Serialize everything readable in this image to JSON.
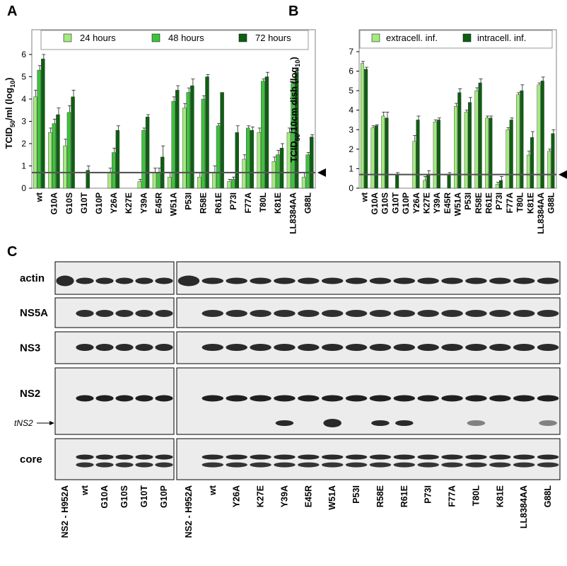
{
  "panel_labels": {
    "a": "A",
    "b": "B",
    "c": "C"
  },
  "colors": {
    "c24": "#a4ea80",
    "c48": "#3ec23e",
    "c72": "#0e5f12",
    "extra": "#a4ea80",
    "intra": "#0e5f12",
    "threshold": "#555555",
    "frame": "#808080"
  },
  "chart_data": [
    {
      "type": "bar",
      "panel": "A",
      "ylabel": "TCID50/ml (log10)",
      "ylabel_parts": {
        "main": "TCID",
        "sub1": "50",
        "mid": "/ml (log",
        "sub2": "10",
        "end": ")"
      },
      "ylim": [
        0,
        6
      ],
      "yticks": [
        "0",
        "1",
        "2",
        "3",
        "4",
        "5",
        "6"
      ],
      "threshold": 0.7,
      "legend_position": "top",
      "grid": false,
      "categories": [
        "wt",
        "G10A",
        "G10S",
        "G10T",
        "G10P",
        "Y26A",
        "K27E",
        "Y39A",
        "E45R",
        "W51A",
        "P53I",
        "R58E",
        "R61E",
        "P73I",
        "F77A",
        "T80L",
        "K81E",
        "LL8384AA",
        "G88L"
      ],
      "series": [
        {
          "name": "24 hours",
          "color_key": "c24",
          "values": [
            4.1,
            2.5,
            1.9,
            0,
            0,
            0.7,
            0,
            0.3,
            0.7,
            0.5,
            3.6,
            0.5,
            0.7,
            0.3,
            1.3,
            2.5,
            1.2,
            2.5,
            0.5
          ]
        },
        {
          "name": "48 hours",
          "color_key": "c48",
          "values": [
            5.3,
            2.9,
            3.4,
            0,
            0,
            1.6,
            0,
            2.6,
            0.7,
            3.9,
            4.3,
            4.0,
            2.8,
            0.4,
            2.7,
            4.8,
            1.5,
            4.7,
            1.5
          ]
        },
        {
          "name": "72 hours",
          "color_key": "c72",
          "values": [
            5.8,
            3.3,
            4.1,
            0.8,
            0,
            2.6,
            0,
            3.2,
            1.4,
            4.4,
            4.6,
            5.0,
            4.3,
            2.5,
            2.6,
            5.0,
            1.8,
            5.2,
            2.3
          ]
        }
      ],
      "errors": [
        [
          0.3,
          0.2,
          0.3,
          0,
          0,
          0.2,
          0,
          0.1,
          0.2,
          0.2,
          0.2,
          0.2,
          0.3,
          0.1,
          0.2,
          0.2,
          0.2,
          0.2,
          0.2
        ],
        [
          0.2,
          0.2,
          0.3,
          0,
          0,
          0.2,
          0,
          0.1,
          0.2,
          0.2,
          0.2,
          0.15,
          0.1,
          0.1,
          0.1,
          0.1,
          0.2,
          0.1,
          0.1
        ],
        [
          0.2,
          0.3,
          0.3,
          0.2,
          0,
          0.2,
          0,
          0.1,
          0.5,
          0.2,
          0.3,
          0.1,
          0,
          0.3,
          0.15,
          0.2,
          0.2,
          0.2,
          0.1
        ]
      ]
    },
    {
      "type": "bar",
      "panel": "B",
      "ylabel": "TCID50/10cm dish (log10)",
      "ylabel_parts": {
        "main": "TCID",
        "sub1": "50",
        "mid": "/10cm dish (log",
        "sub2": "10",
        "end": ")"
      },
      "ylim": [
        0,
        7
      ],
      "yticks": [
        "0",
        "1",
        "2",
        "3",
        "4",
        "5",
        "6",
        "7"
      ],
      "threshold": 0.7,
      "legend_position": "top",
      "grid": false,
      "categories": [
        "wt",
        "G10A",
        "G10S",
        "G10T",
        "G10P",
        "Y26A",
        "K27E",
        "Y39A",
        "E45R",
        "W51A",
        "P53I",
        "R58E",
        "R61E",
        "P73I",
        "F77A",
        "T80L",
        "K81E",
        "LL8384AA",
        "G88L"
      ],
      "series": [
        {
          "name": "extracell. inf.",
          "color_key": "extra",
          "values": [
            6.4,
            3.1,
            3.7,
            0,
            0,
            2.4,
            0.4,
            3.4,
            0,
            4.2,
            3.9,
            5.0,
            3.6,
            0.2,
            3.0,
            4.8,
            1.7,
            5.3,
            1.9
          ]
        },
        {
          "name": "intracell. inf.",
          "color_key": "intra",
          "values": [
            6.1,
            3.2,
            3.6,
            0.7,
            0,
            3.5,
            0.7,
            3.5,
            0.7,
            4.9,
            4.4,
            5.4,
            3.6,
            0.4,
            3.5,
            5.0,
            2.6,
            5.5,
            2.8
          ]
        }
      ],
      "errors": [
        [
          0.1,
          0.1,
          0.2,
          0,
          0,
          0.3,
          0.2,
          0.1,
          0,
          0.15,
          0.1,
          0.15,
          0.1,
          0.1,
          0.1,
          0.1,
          0.2,
          0.1,
          0.1
        ],
        [
          0.1,
          0.05,
          0.3,
          0.1,
          0,
          0.2,
          0.2,
          0.1,
          0.1,
          0.2,
          0.25,
          0.2,
          0.1,
          0.2,
          0.1,
          0.3,
          0.3,
          0.2,
          0.2
        ]
      ]
    }
  ],
  "blot": {
    "rows": [
      "actin",
      "NS5A",
      "NS3",
      "NS2",
      "core"
    ],
    "tns2_label": "tNS2",
    "left_lanes": [
      "NS2 - H952A",
      "wt",
      "G10A",
      "G10S",
      "G10T",
      "G10P"
    ],
    "right_lanes": [
      "NS2 - H952A",
      "wt",
      "Y26A",
      "K27E",
      "Y39A",
      "E45R",
      "W51A",
      "P53I",
      "R58E",
      "R61E",
      "P73I",
      "F77A",
      "T80L",
      "K81E",
      "LL8384AA",
      "G88L"
    ]
  }
}
